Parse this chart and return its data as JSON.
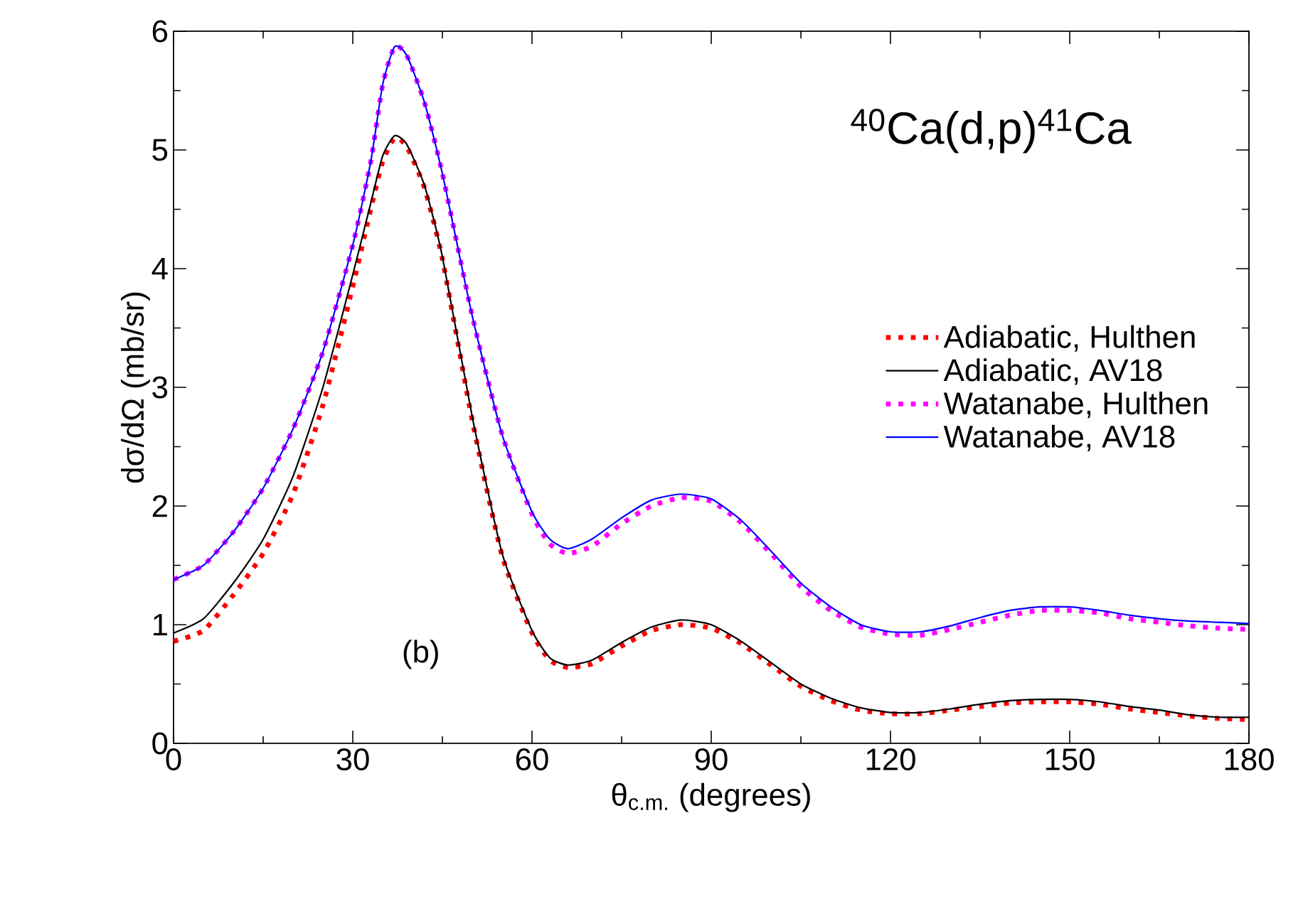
{
  "chart_data": {
    "type": "line",
    "title": "$^{40}$Ca(d,p)$^{41}$Ca",
    "xlabel": "θ$_{c.m.}$  (degrees)",
    "ylabel": "dσ/dΩ (mb/sr)",
    "annotations": [
      "(b)"
    ],
    "x": [
      0,
      5,
      10,
      15,
      20,
      25,
      30,
      33,
      35,
      37,
      39,
      42,
      45,
      50,
      55,
      60,
      63,
      66,
      70,
      75,
      80,
      85,
      90,
      95,
      100,
      105,
      110,
      115,
      120,
      125,
      130,
      135,
      140,
      145,
      150,
      155,
      160,
      165,
      170,
      175,
      180
    ],
    "series": [
      {
        "name": "Adiabatic, Hulthen",
        "color": "#ff0000",
        "line_style": "dotted",
        "values": [
          0.86,
          0.95,
          1.25,
          1.6,
          2.1,
          2.85,
          3.85,
          4.5,
          4.9,
          5.1,
          5.03,
          4.68,
          4.08,
          2.72,
          1.58,
          0.93,
          0.7,
          0.64,
          0.67,
          0.82,
          0.95,
          1.0,
          0.97,
          0.84,
          0.66,
          0.48,
          0.36,
          0.28,
          0.25,
          0.25,
          0.28,
          0.31,
          0.34,
          0.35,
          0.35,
          0.33,
          0.29,
          0.26,
          0.23,
          0.21,
          0.2
        ]
      },
      {
        "name": "Adiabatic, AV18",
        "color": "#000000",
        "line_style": "solid",
        "values": [
          0.93,
          1.05,
          1.35,
          1.72,
          2.25,
          3.0,
          3.95,
          4.55,
          4.95,
          5.12,
          5.05,
          4.7,
          4.1,
          2.75,
          1.6,
          0.95,
          0.72,
          0.66,
          0.7,
          0.85,
          0.98,
          1.04,
          1.0,
          0.86,
          0.68,
          0.5,
          0.38,
          0.3,
          0.26,
          0.26,
          0.29,
          0.33,
          0.36,
          0.37,
          0.37,
          0.35,
          0.31,
          0.28,
          0.24,
          0.22,
          0.22
        ]
      },
      {
        "name": "Watanabe, Hulthen",
        "color": "#ff00ff",
        "line_style": "dotted",
        "values": [
          1.38,
          1.5,
          1.78,
          2.15,
          2.65,
          3.3,
          4.2,
          4.9,
          5.55,
          5.87,
          5.8,
          5.4,
          4.8,
          3.6,
          2.6,
          1.93,
          1.68,
          1.6,
          1.66,
          1.85,
          2.0,
          2.07,
          2.04,
          1.86,
          1.6,
          1.32,
          1.12,
          0.98,
          0.92,
          0.91,
          0.96,
          1.02,
          1.08,
          1.12,
          1.12,
          1.1,
          1.05,
          1.02,
          0.99,
          0.97,
          0.96
        ]
      },
      {
        "name": "Watanabe, AV18",
        "color": "#0000ff",
        "line_style": "solid",
        "values": [
          1.38,
          1.5,
          1.78,
          2.15,
          2.65,
          3.3,
          4.2,
          4.9,
          5.55,
          5.87,
          5.8,
          5.4,
          4.8,
          3.6,
          2.6,
          1.95,
          1.72,
          1.64,
          1.72,
          1.9,
          2.05,
          2.1,
          2.06,
          1.88,
          1.62,
          1.35,
          1.15,
          1.0,
          0.94,
          0.94,
          0.99,
          1.06,
          1.12,
          1.15,
          1.15,
          1.12,
          1.08,
          1.05,
          1.03,
          1.02,
          1.01
        ]
      }
    ],
    "xlim": [
      0,
      180
    ],
    "xticks": [
      0,
      30,
      60,
      90,
      120,
      150,
      180
    ],
    "ylim": [
      0,
      6
    ],
    "yticks": [
      0,
      1,
      2,
      3,
      4,
      5,
      6
    ],
    "legend": "right"
  }
}
